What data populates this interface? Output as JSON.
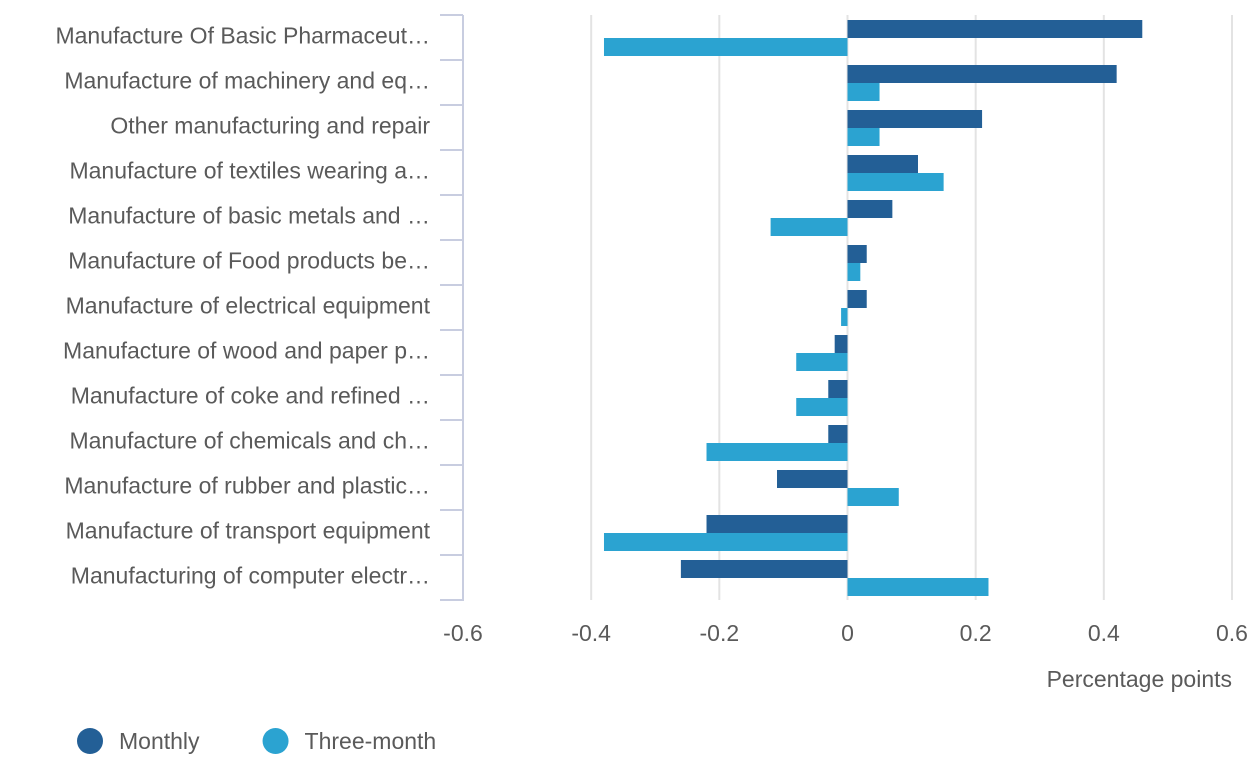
{
  "chart_data": {
    "type": "barh",
    "categories": [
      "Manufacture Of Basic Pharmaceut…",
      "Manufacture of machinery and eq…",
      "Other manufacturing and repair",
      "Manufacture of textiles wearing a…",
      "Manufacture of basic metals and …",
      "Manufacture of Food products be…",
      "Manufacture of electrical equipment",
      "Manufacture of wood and paper p…",
      "Manufacture of coke and refined …",
      "Manufacture of chemicals and ch…",
      "Manufacture of rubber and plastic…",
      "Manufacture of transport equipment",
      "Manufacturing of computer electr…"
    ],
    "series": [
      {
        "name": "Monthly",
        "color": "#235f96",
        "values": [
          0.46,
          0.42,
          0.21,
          0.11,
          0.07,
          0.03,
          0.03,
          -0.02,
          -0.03,
          -0.03,
          -0.11,
          -0.22,
          -0.26
        ]
      },
      {
        "name": "Three-month",
        "color": "#2ba3d1",
        "values": [
          -0.38,
          0.05,
          0.05,
          0.15,
          -0.12,
          0.02,
          -0.01,
          -0.08,
          -0.08,
          -0.22,
          0.08,
          -0.38,
          0.22
        ]
      }
    ],
    "xlabel": "Percentage points",
    "xlim": [
      -0.6,
      0.6
    ],
    "xticks": [
      -0.6,
      -0.4,
      -0.2,
      0,
      0.2,
      0.4,
      0.6
    ],
    "grid": true,
    "legend": "bottom-left"
  }
}
